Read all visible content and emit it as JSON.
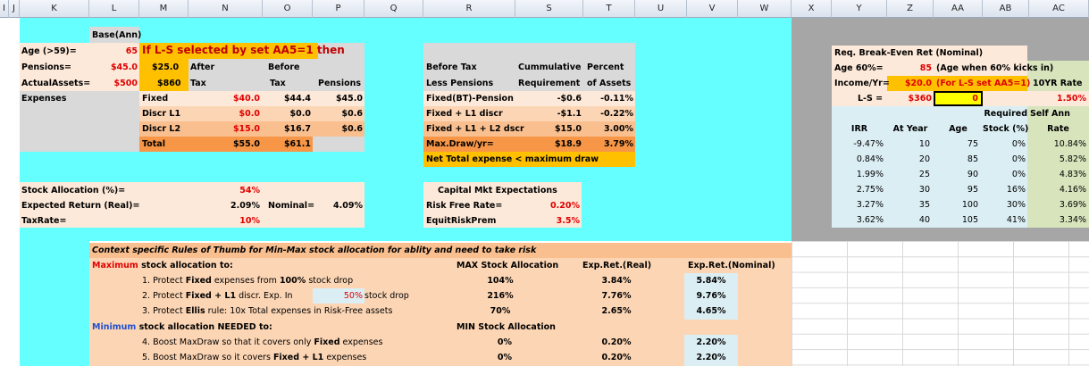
{
  "columns": [
    "I",
    "J",
    "K",
    "L",
    "M",
    "N",
    "O",
    "P",
    "Q",
    "R",
    "S",
    "T",
    "U",
    "V",
    "W",
    "X",
    "Y",
    "Z",
    "AA",
    "AB",
    "AC"
  ],
  "left": {
    "base_ann": "Base(Ann)",
    "age_label": "Age (>59)=",
    "age_val": "65",
    "banner": "If L-S selected by set AA5=1 then",
    "pensions_label": "Pensions=",
    "pensions_val": "$45.0",
    "pensions_m": "$25.0",
    "after": "After",
    "before": "Before",
    "assets_label": "ActualAssets=",
    "assets_val": "$500",
    "assets_m": "$860",
    "tax": "Tax",
    "tax2": "Tax",
    "pensions_hdr": "Pensions",
    "expenses": "Expenses",
    "rows": [
      {
        "name": "Fixed",
        "n": "$40.0",
        "o": "$44.4",
        "p": "$45.0"
      },
      {
        "name": "Discr L1",
        "n": "$0.0",
        "o": "$0.0",
        "p": "$0.6"
      },
      {
        "name": "Discr L2",
        "n": "$15.0",
        "o": "$16.7",
        "p": "$0.6"
      },
      {
        "name": "Total",
        "n": "$55.0",
        "o": "$61.1",
        "p": ""
      }
    ],
    "stock_alloc_label": "Stock Allocation (%)=",
    "stock_alloc_val": "54%",
    "exp_ret_label": "Expected  Return (Real)=",
    "exp_ret_val": "2.09%",
    "nominal_label": "Nominal=",
    "nominal_val": "4.09%",
    "tax_rate_label": "TaxRate=",
    "tax_rate_val": "10%"
  },
  "middle": {
    "h1a": "Before Tax",
    "h1b": "Cummulative",
    "h1c": "Percent",
    "h2a": "Less Pensions",
    "h2b": "Requirement",
    "h2c": "of Assets",
    "rows": [
      {
        "name": "Fixed(BT)-Pension",
        "s": "-$0.6",
        "t": "-0.11%"
      },
      {
        "name": "Fixed + L1 discr",
        "s": "-$1.1",
        "t": "-0.22%"
      },
      {
        "name": "Fixed + L1 + L2 dscr",
        "s": "$15.0",
        "t": "3.00%"
      },
      {
        "name": "Max.Draw/yr=",
        "s": "$18.9",
        "t": "3.79%"
      }
    ],
    "net_total": "Net Total expense < maximum draw",
    "cap_title": "Capital Mkt Expectations",
    "rf_label": "Risk Free Rate=",
    "rf_val": "0.20%",
    "erp_label": "EquitRiskPrem",
    "erp_val": "3.5%"
  },
  "right": {
    "title": "Req. Break-Even Ret (Nominal)",
    "age60_label": "Age 60%=",
    "age60_val": "85",
    "age60_note": "(Age when 60% kicks in)",
    "income_label": "Income/Yr=",
    "income_val": "$20.0",
    "income_note": "(For L-S  set AA5=1)",
    "ten_yr": "10YR Rate",
    "ls_label": "L-S  =",
    "ls_val": "$360",
    "ls_input": "0",
    "ten_yr_val": "1.50%",
    "col_irr": "IRR",
    "col_year": "At Year",
    "col_age": "Age",
    "col_req1": "Required",
    "col_req2": "Stock (%)",
    "col_self1": "Self Ann",
    "col_self2": "Rate",
    "rows": [
      {
        "irr": "-9.47%",
        "year": "10",
        "age": "75",
        "stock": "0%",
        "rate": "10.84%"
      },
      {
        "irr": "0.84%",
        "year": "20",
        "age": "85",
        "stock": "0%",
        "rate": "5.82%"
      },
      {
        "irr": "1.99%",
        "year": "25",
        "age": "90",
        "stock": "0%",
        "rate": "4.83%"
      },
      {
        "irr": "2.75%",
        "year": "30",
        "age": "95",
        "stock": "16%",
        "rate": "4.16%"
      },
      {
        "irr": "3.27%",
        "year": "35",
        "age": "100",
        "stock": "30%",
        "rate": "3.69%"
      },
      {
        "irr": "3.62%",
        "year": "40",
        "age": "105",
        "stock": "41%",
        "rate": "3.34%"
      }
    ]
  },
  "rules": {
    "title": "Context specific Rules of Thumb for Min-Max stock allocation for ablity and need to take risk",
    "max_word": "Maximum",
    "max_rest": " stock allocation to:",
    "h_max": "MAX Stock Allocation",
    "h_exp_real": "Exp.Ret.(Real)",
    "h_exp_nom": "Exp.Ret.(Nominal)",
    "r1_a": "1. Protect ",
    "r1_b": "Fixed",
    "r1_c": " expenses from ",
    "r1_d": "100%",
    "r1_e": " stock drop",
    "r1_max": "104%",
    "r1_real": "3.84%",
    "r1_nom": "5.84%",
    "r2_a": "2. Protect ",
    "r2_b": "Fixed + L1",
    "r2_c": " discr. Exp. In",
    "r2_pct": "50%",
    "r2_e": " stock drop",
    "r2_max": "216%",
    "r2_real": "7.76%",
    "r2_nom": "9.76%",
    "r3_a": "3. Protect ",
    "r3_b": "Ellis",
    "r3_c": " rule: 10x Total expenses in Risk-Free assets",
    "r3_max": "70%",
    "r3_real": "2.65%",
    "r3_nom": "4.65%",
    "min_word": "Minimum",
    "min_rest": " stock allocation NEEDED to:",
    "h_min": "MIN Stock Allocation",
    "r4_a": "4.  Boost MaxDraw so that it covers only  ",
    "r4_b": "Fixed",
    "r4_c": " expenses",
    "r4_min": "0%",
    "r4_real": "0.20%",
    "r4_nom": "2.20%",
    "r5_a": "5.  Boost MaxDraw so  it covers ",
    "r5_b": "Fixed + L1",
    "r5_c": " expenses",
    "r5_min": "0%",
    "r5_real": "0.20%",
    "r5_nom": "2.20%"
  },
  "colors": {
    "cyan": "#66ffff",
    "peach": "#fde9d9",
    "orange": "#f79646",
    "gold": "#ffc000",
    "gray": "#a6a6a6",
    "lightblue": "#dbeef4",
    "green": "#d7e4bc",
    "yellow": "#ffff00"
  }
}
